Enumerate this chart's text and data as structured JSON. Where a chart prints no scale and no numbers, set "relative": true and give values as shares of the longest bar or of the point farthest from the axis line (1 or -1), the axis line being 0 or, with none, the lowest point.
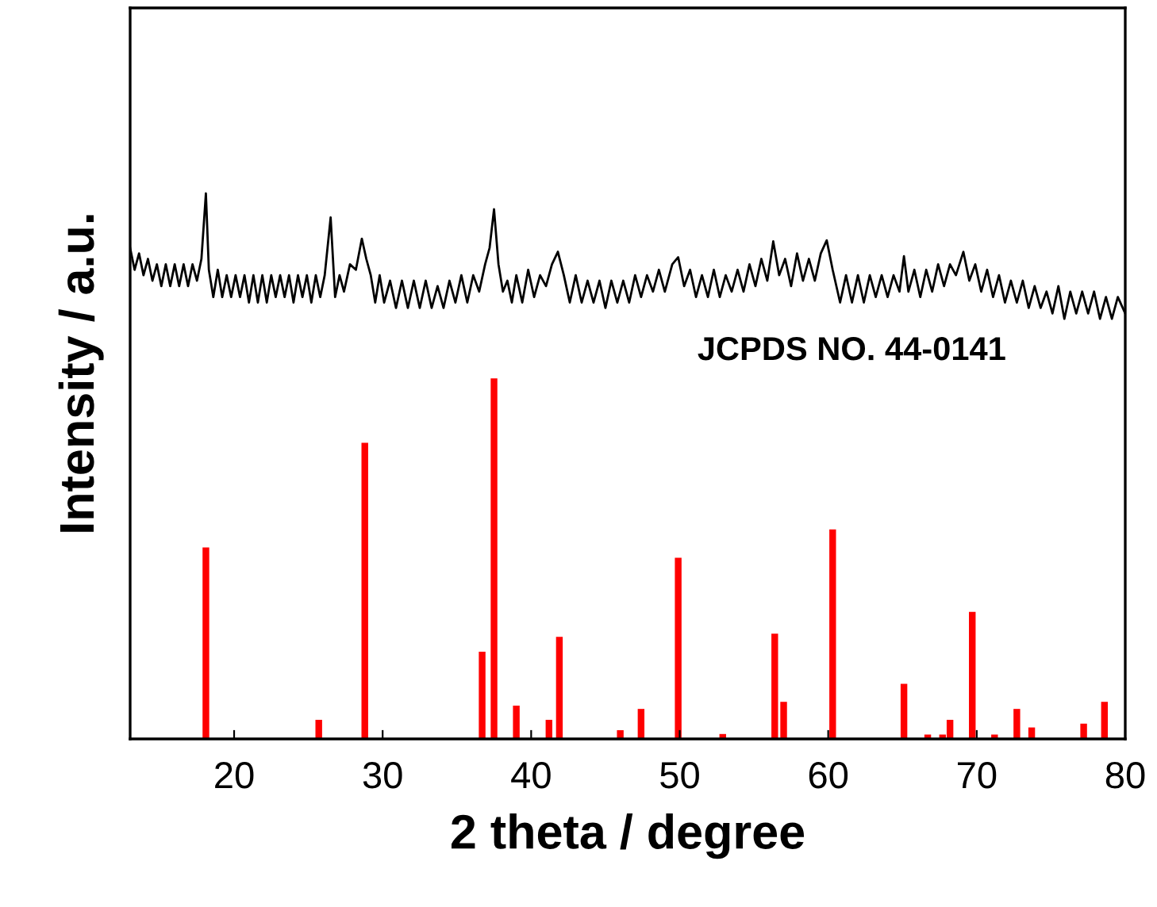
{
  "chart_data": {
    "type": "line",
    "relative": true,
    "xlabel": "2 theta / degree",
    "ylabel": "Intensity / a.u.",
    "annotations": [
      "JCPDS NO. 44-0141"
    ],
    "xlim": [
      13,
      80
    ],
    "xticks": [
      20,
      30,
      40,
      50,
      60,
      70,
      80
    ],
    "grid": false,
    "legend": false,
    "marker": "none",
    "line_style": "solid",
    "series": [
      {
        "color": "#000000",
        "x": [
          13.0,
          13.3,
          13.6,
          13.9,
          14.2,
          14.5,
          14.8,
          15.1,
          15.4,
          15.7,
          16.0,
          16.3,
          16.6,
          16.9,
          17.2,
          17.5,
          17.8,
          18.1,
          18.3,
          18.6,
          18.9,
          19.2,
          19.5,
          19.8,
          20.1,
          20.4,
          20.7,
          21.0,
          21.3,
          21.6,
          21.9,
          22.2,
          22.5,
          22.8,
          23.1,
          23.4,
          23.7,
          24.0,
          24.3,
          24.6,
          24.9,
          25.2,
          25.5,
          25.8,
          26.1,
          26.5,
          26.8,
          27.1,
          27.4,
          27.8,
          28.2,
          28.6,
          28.9,
          29.2,
          29.5,
          29.8,
          30.1,
          30.5,
          30.9,
          31.3,
          31.7,
          32.1,
          32.5,
          32.9,
          33.3,
          33.7,
          34.1,
          34.5,
          34.9,
          35.3,
          35.7,
          36.1,
          36.5,
          36.9,
          37.2,
          37.5,
          37.8,
          38.1,
          38.4,
          38.7,
          39.0,
          39.4,
          39.8,
          40.2,
          40.6,
          41.0,
          41.4,
          41.8,
          42.2,
          42.6,
          43.0,
          43.4,
          43.8,
          44.2,
          44.6,
          45.0,
          45.4,
          45.8,
          46.2,
          46.6,
          47.0,
          47.4,
          47.8,
          48.2,
          48.6,
          49.0,
          49.5,
          49.9,
          50.3,
          50.7,
          51.1,
          51.5,
          51.9,
          52.3,
          52.7,
          53.1,
          53.5,
          53.9,
          54.3,
          54.7,
          55.1,
          55.5,
          55.9,
          56.3,
          56.7,
          57.1,
          57.5,
          57.9,
          58.3,
          58.7,
          59.1,
          59.5,
          59.9,
          60.3,
          60.8,
          61.2,
          61.6,
          62.0,
          62.4,
          62.8,
          63.2,
          63.6,
          64.0,
          64.4,
          64.8,
          65.1,
          65.4,
          65.8,
          66.2,
          66.6,
          67.0,
          67.4,
          67.8,
          68.2,
          68.6,
          69.1,
          69.5,
          69.9,
          70.3,
          70.7,
          71.1,
          71.5,
          71.9,
          72.3,
          72.7,
          73.1,
          73.5,
          73.9,
          74.3,
          74.7,
          75.1,
          75.5,
          75.9,
          76.3,
          76.7,
          77.1,
          77.5,
          77.9,
          78.3,
          78.7,
          79.1,
          79.5,
          80.0
        ],
        "values": [
          0.9,
          0.86,
          0.89,
          0.85,
          0.88,
          0.84,
          0.87,
          0.83,
          0.87,
          0.83,
          0.87,
          0.83,
          0.87,
          0.83,
          0.87,
          0.84,
          0.88,
          1.0,
          0.86,
          0.81,
          0.86,
          0.81,
          0.85,
          0.81,
          0.85,
          0.81,
          0.85,
          0.8,
          0.85,
          0.8,
          0.85,
          0.8,
          0.85,
          0.81,
          0.85,
          0.81,
          0.85,
          0.8,
          0.85,
          0.81,
          0.85,
          0.8,
          0.85,
          0.81,
          0.85,
          0.956,
          0.81,
          0.85,
          0.82,
          0.87,
          0.86,
          0.917,
          0.88,
          0.85,
          0.8,
          0.85,
          0.8,
          0.84,
          0.79,
          0.84,
          0.79,
          0.84,
          0.79,
          0.84,
          0.79,
          0.83,
          0.79,
          0.84,
          0.8,
          0.85,
          0.8,
          0.85,
          0.82,
          0.87,
          0.9,
          0.971,
          0.87,
          0.82,
          0.84,
          0.8,
          0.85,
          0.8,
          0.86,
          0.81,
          0.85,
          0.83,
          0.87,
          0.893,
          0.85,
          0.8,
          0.85,
          0.8,
          0.84,
          0.8,
          0.84,
          0.79,
          0.84,
          0.8,
          0.84,
          0.8,
          0.85,
          0.81,
          0.85,
          0.82,
          0.86,
          0.82,
          0.87,
          0.883,
          0.83,
          0.86,
          0.81,
          0.85,
          0.81,
          0.86,
          0.81,
          0.85,
          0.82,
          0.86,
          0.82,
          0.87,
          0.83,
          0.88,
          0.84,
          0.912,
          0.85,
          0.88,
          0.83,
          0.89,
          0.84,
          0.88,
          0.84,
          0.89,
          0.914,
          0.86,
          0.8,
          0.85,
          0.8,
          0.85,
          0.8,
          0.85,
          0.81,
          0.85,
          0.81,
          0.85,
          0.82,
          0.885,
          0.82,
          0.86,
          0.81,
          0.86,
          0.82,
          0.87,
          0.83,
          0.87,
          0.85,
          0.893,
          0.84,
          0.87,
          0.82,
          0.86,
          0.81,
          0.85,
          0.8,
          0.84,
          0.8,
          0.84,
          0.79,
          0.83,
          0.79,
          0.82,
          0.78,
          0.83,
          0.77,
          0.82,
          0.78,
          0.82,
          0.78,
          0.82,
          0.77,
          0.81,
          0.77,
          0.81,
          0.78
        ]
      },
      {
        "type": "bar",
        "color": "#ff0000",
        "x": [
          18.1,
          25.7,
          28.8,
          36.7,
          37.5,
          39.0,
          41.2,
          41.9,
          46.0,
          47.4,
          49.9,
          52.9,
          56.4,
          57.0,
          60.3,
          65.1,
          66.7,
          67.7,
          68.2,
          69.7,
          71.2,
          72.7,
          73.7,
          77.2,
          78.6
        ],
        "values": [
          0.351,
          0.035,
          0.543,
          0.16,
          0.661,
          0.061,
          0.035,
          0.187,
          0.016,
          0.055,
          0.332,
          0.009,
          0.193,
          0.068,
          0.384,
          0.101,
          0.008,
          0.008,
          0.035,
          0.233,
          0.008,
          0.055,
          0.021,
          0.028,
          0.068
        ]
      }
    ]
  }
}
